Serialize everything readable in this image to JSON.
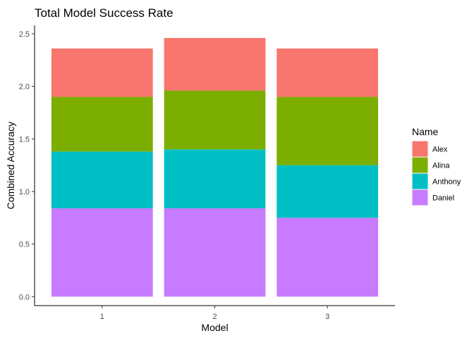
{
  "chart_data": {
    "type": "bar",
    "stacked": true,
    "title": "Total Model Success Rate",
    "xlabel": "Model",
    "ylabel": "Combined Accuracy",
    "categories": [
      "1",
      "2",
      "3"
    ],
    "y_ticks": [
      "0.0",
      "0.5",
      "1.0",
      "1.5",
      "2.0",
      "2.5"
    ],
    "y_tick_values": [
      0,
      0.5,
      1.0,
      1.5,
      2.0,
      2.5
    ],
    "ylim": [
      -0.085,
      2.58
    ],
    "grid": false,
    "legend": {
      "title": "Name",
      "position": "right"
    },
    "series": [
      {
        "name": "Daniel",
        "color": "#C77CFF",
        "values": [
          0.84,
          0.84,
          0.75
        ]
      },
      {
        "name": "Anthony",
        "color": "#00BFC4",
        "values": [
          0.54,
          0.56,
          0.5
        ]
      },
      {
        "name": "Alina",
        "color": "#7CAE00",
        "values": [
          0.52,
          0.56,
          0.65
        ]
      },
      {
        "name": "Alex",
        "color": "#F8766D",
        "values": [
          0.46,
          0.5,
          0.46
        ]
      }
    ],
    "legend_order": [
      "Alex",
      "Alina",
      "Anthony",
      "Daniel"
    ]
  }
}
